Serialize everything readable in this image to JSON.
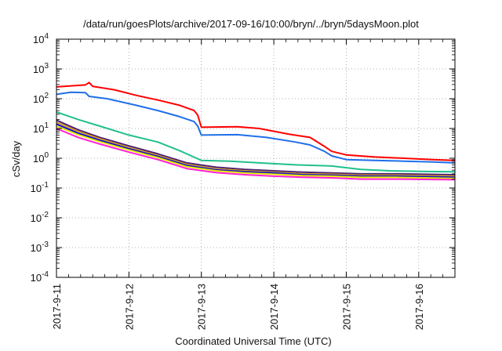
{
  "chart_data": {
    "type": "line",
    "title": "/data/run/goesPlots/archive/2017-09-16/10:00/bryn/../bryn/5daysMoon.plot",
    "xlabel": "Coordinated Universal Time (UTC)",
    "ylabel": "cSv/day",
    "yscale": "log",
    "ylim": [
      0.0001,
      10000
    ],
    "xlim_days": [
      0,
      5.5
    ],
    "x_ticks": [
      "2017-9-11",
      "2017-9-12",
      "2017-9-13",
      "2017-9-14",
      "2017-9-15",
      "2017-9-16"
    ],
    "y_ticks": [
      {
        "base": "10",
        "exp": "4"
      },
      {
        "base": "10",
        "exp": "3"
      },
      {
        "base": "10",
        "exp": "2"
      },
      {
        "base": "10",
        "exp": "1"
      },
      {
        "base": "10",
        "exp": "0"
      },
      {
        "base": "10",
        "exp": "-1"
      },
      {
        "base": "10",
        "exp": "-2"
      },
      {
        "base": "10",
        "exp": "-3"
      },
      {
        "base": "10",
        "exp": "-4"
      }
    ],
    "grid": true,
    "series": [
      {
        "color": "#ff0000",
        "x": [
          "2017-09-11 00:00",
          "2017-09-11 09:36",
          "2017-09-11 10:48",
          "2017-09-11 12:00",
          "2017-09-11 19:12",
          "2017-09-12 02:24",
          "2017-09-12 09:36",
          "2017-09-12 16:48",
          "2017-09-12 21:36",
          "2017-09-12 22:48",
          "2017-09-13 00:00",
          "2017-09-13 12:00",
          "2017-09-13 19:12",
          "2017-09-14 04:48",
          "2017-09-14 12:00",
          "2017-09-14 16:48",
          "2017-09-14 19:12",
          "2017-09-15 00:00",
          "2017-09-15 09:36",
          "2017-09-15 19:12",
          "2017-09-16 04:48",
          "2017-09-16 12:00"
        ],
        "y": [
          250,
          290,
          350,
          260,
          200,
          130,
          90,
          60,
          40,
          28,
          11,
          11.5,
          10,
          6.5,
          5,
          2.5,
          1.7,
          1.3,
          1.1,
          1.0,
          0.9,
          0.85
        ]
      },
      {
        "color": "#1f6fe8",
        "x": [
          "2017-09-11 00:00",
          "2017-09-11 04:48",
          "2017-09-11 09:36",
          "2017-09-11 10:48",
          "2017-09-11 16:48",
          "2017-09-12 02:24",
          "2017-09-12 09:36",
          "2017-09-12 16:48",
          "2017-09-12 21:36",
          "2017-09-12 22:48",
          "2017-09-13 00:00",
          "2017-09-13 12:00",
          "2017-09-13 21:36",
          "2017-09-14 07:12",
          "2017-09-14 12:00",
          "2017-09-14 16:48",
          "2017-09-14 19:12",
          "2017-09-15 00:00",
          "2017-09-15 09:36",
          "2017-09-15 19:12",
          "2017-09-16 04:48",
          "2017-09-16 12:00"
        ],
        "y": [
          140,
          165,
          160,
          120,
          100,
          60,
          40,
          25,
          17,
          12,
          6,
          6.2,
          5,
          3.5,
          2.8,
          1.7,
          1.2,
          0.9,
          0.85,
          0.8,
          0.75,
          0.7
        ]
      },
      {
        "color": "#20c08c",
        "x": [
          "2017-09-11 00:00",
          "2017-09-11 07:12",
          "2017-09-11 14:24",
          "2017-09-12 00:00",
          "2017-09-12 09:36",
          "2017-09-12 16:48",
          "2017-09-13 00:00",
          "2017-09-13 09:36",
          "2017-09-13 19:12",
          "2017-09-14 07:12",
          "2017-09-14 19:12",
          "2017-09-15 04:48",
          "2017-09-15 14:24",
          "2017-09-16 02:24",
          "2017-09-16 12:00"
        ],
        "y": [
          36,
          20,
          12,
          6,
          3.5,
          1.8,
          0.85,
          0.8,
          0.7,
          0.6,
          0.55,
          0.42,
          0.38,
          0.36,
          0.35
        ]
      },
      {
        "color": "#4b1f6f",
        "x": [
          "2017-09-11 00:00",
          "2017-09-11 07:12",
          "2017-09-11 14:24",
          "2017-09-12 00:00",
          "2017-09-12 09:36",
          "2017-09-12 19:12",
          "2017-09-13 04:48",
          "2017-09-13 14:24",
          "2017-09-14 00:00",
          "2017-09-14 09:36",
          "2017-09-14 19:12",
          "2017-09-15 04:48",
          "2017-09-15 16:48",
          "2017-09-16 12:00"
        ],
        "y": [
          19,
          9,
          5,
          2.6,
          1.4,
          0.7,
          0.5,
          0.42,
          0.38,
          0.34,
          0.32,
          0.3,
          0.3,
          0.28
        ]
      },
      {
        "color": "#d8a020",
        "x": [
          "2017-09-11 00:00",
          "2017-09-11 07:12",
          "2017-09-11 14:24",
          "2017-09-12 00:00",
          "2017-09-12 09:36",
          "2017-09-12 19:12",
          "2017-09-13 04:48",
          "2017-09-13 14:24",
          "2017-09-14 00:00",
          "2017-09-14 09:36",
          "2017-09-14 19:12",
          "2017-09-15 04:48",
          "2017-09-15 16:48",
          "2017-09-16 12:00"
        ],
        "y": [
          16,
          8,
          4.5,
          2.3,
          1.25,
          0.62,
          0.44,
          0.38,
          0.34,
          0.3,
          0.29,
          0.27,
          0.27,
          0.25
        ]
      },
      {
        "color": "#1010d0",
        "x": [
          "2017-09-11 00:00",
          "2017-09-11 07:12",
          "2017-09-11 14:24",
          "2017-09-12 00:00",
          "2017-09-12 09:36",
          "2017-09-12 19:12",
          "2017-09-13 04:48",
          "2017-09-13 14:24",
          "2017-09-14 00:00",
          "2017-09-14 09:36",
          "2017-09-14 19:12",
          "2017-09-15 04:48",
          "2017-09-15 16:48",
          "2017-09-16 12:00"
        ],
        "y": [
          14,
          7,
          4,
          2.1,
          1.15,
          0.57,
          0.41,
          0.35,
          0.32,
          0.28,
          0.27,
          0.25,
          0.25,
          0.23
        ]
      },
      {
        "color": "#e8e800",
        "x": [
          "2017-09-11 00:00",
          "2017-09-11 07:12",
          "2017-09-11 14:24",
          "2017-09-12 00:00",
          "2017-09-12 09:36",
          "2017-09-12 19:12",
          "2017-09-13 04:48",
          "2017-09-13 14:24",
          "2017-09-14 00:00",
          "2017-09-14 09:36",
          "2017-09-14 19:12",
          "2017-09-15 04:48",
          "2017-09-15 16:48",
          "2017-09-16 12:00"
        ],
        "y": [
          12,
          6.2,
          3.6,
          1.9,
          1.05,
          0.52,
          0.38,
          0.32,
          0.29,
          0.26,
          0.25,
          0.23,
          0.23,
          0.21
        ]
      },
      {
        "color": "#ff20d8",
        "x": [
          "2017-09-11 00:00",
          "2017-09-11 07:12",
          "2017-09-11 14:24",
          "2017-09-12 00:00",
          "2017-09-12 09:36",
          "2017-09-12 19:12",
          "2017-09-13 04:48",
          "2017-09-13 14:24",
          "2017-09-14 00:00",
          "2017-09-14 09:36",
          "2017-09-14 19:12",
          "2017-09-15 04:48",
          "2017-09-15 16:48",
          "2017-09-16 12:00"
        ],
        "y": [
          10,
          5,
          3,
          1.6,
          0.9,
          0.45,
          0.33,
          0.28,
          0.25,
          0.23,
          0.22,
          0.2,
          0.2,
          0.19
        ]
      }
    ]
  }
}
